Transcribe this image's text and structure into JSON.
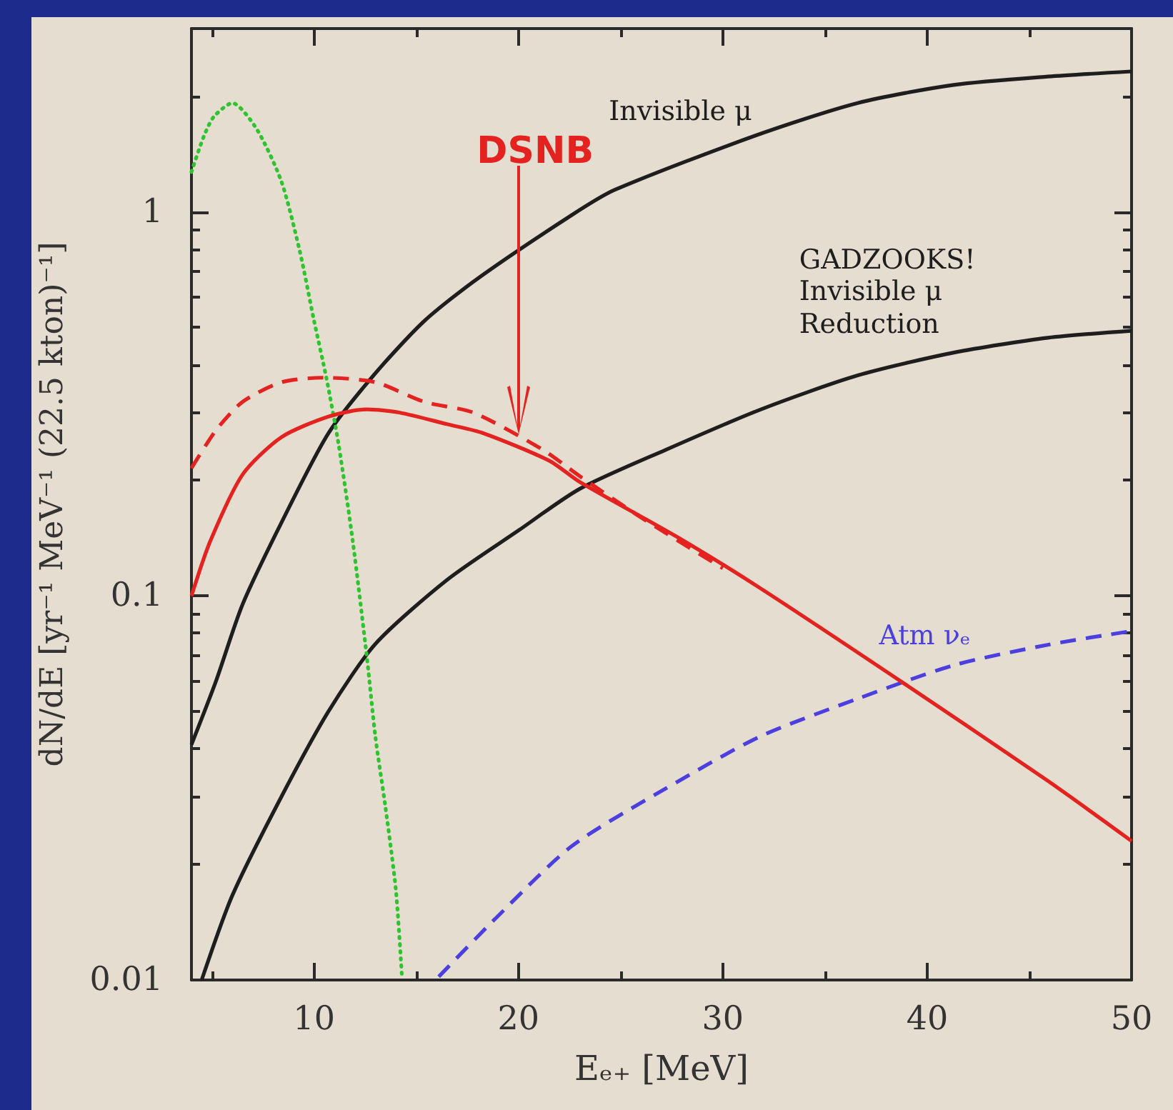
{
  "chart_data": {
    "type": "line",
    "xlabel": "Eₑ₊ [MeV]",
    "ylabel": "dN/dE [yr⁻¹ MeV⁻¹ (22.5 kton)⁻¹]",
    "log": "y",
    "grid": false,
    "marker": "none",
    "xlim": [
      4,
      50
    ],
    "ylim": [
      0.01,
      3
    ],
    "xticks": [
      {
        "value": 5,
        "label": null
      },
      10,
      {
        "value": 15,
        "label": null
      },
      20,
      {
        "value": 25,
        "label": null
      },
      30,
      {
        "value": 35,
        "label": null
      },
      40,
      {
        "value": 45,
        "label": null
      },
      50
    ],
    "yticks": [
      0.01,
      {
        "value": 0.02,
        "label": null
      },
      {
        "value": 0.03,
        "label": null
      },
      {
        "value": 0.04,
        "label": null
      },
      {
        "value": 0.05,
        "label": null
      },
      {
        "value": 0.06,
        "label": null
      },
      {
        "value": 0.07,
        "label": null
      },
      {
        "value": 0.08,
        "label": null
      },
      {
        "value": 0.09,
        "label": null
      },
      0.1,
      {
        "value": 0.2,
        "label": null
      },
      {
        "value": 0.3,
        "label": null
      },
      {
        "value": 0.4,
        "label": null
      },
      {
        "value": 0.5,
        "label": null
      },
      {
        "value": 0.6,
        "label": null
      },
      {
        "value": 0.7,
        "label": null
      },
      {
        "value": 0.8,
        "label": null
      },
      {
        "value": 0.9,
        "label": null
      },
      1,
      {
        "value": 2,
        "label": null
      }
    ],
    "annotations": [
      "DSNB"
    ],
    "series": [
      {
        "name": "Invisible μ",
        "color": "#1e1e1e",
        "line_style": "solid",
        "x": [
          4,
          5.2,
          6.5,
          8.4,
          10.7,
          13,
          15.4,
          18,
          22.6,
          24.7,
          31.6,
          36.6,
          41.3,
          45.9,
          50
        ],
        "values": [
          0.041,
          0.06,
          0.095,
          0.155,
          0.265,
          0.38,
          0.52,
          0.67,
          0.98,
          1.14,
          1.58,
          1.92,
          2.14,
          2.25,
          2.32
        ]
      },
      {
        "name": "GADZOOKS!\nInvisible μ\nReduction",
        "color": "#1e1e1e",
        "line_style": "solid",
        "x": [
          4.5,
          6,
          8.4,
          10.7,
          13,
          16.5,
          20,
          23,
          27.2,
          31.8,
          36.6,
          41.3,
          45.9,
          50
        ],
        "values": [
          0.01,
          0.0166,
          0.03,
          0.05,
          0.075,
          0.11,
          0.148,
          0.19,
          0.24,
          0.305,
          0.375,
          0.43,
          0.47,
          0.49
        ]
      },
      {
        "color": "#2fc42f",
        "line_style": "dotted",
        "x": [
          4,
          4.6,
          5.1,
          6,
          7.2,
          8.4,
          9.3,
          10,
          10.6,
          11.2,
          11.9,
          12.6,
          13,
          13.5,
          14,
          14.3
        ],
        "values": [
          1.27,
          1.57,
          1.77,
          1.92,
          1.64,
          1.2,
          0.79,
          0.52,
          0.37,
          0.248,
          0.138,
          0.068,
          0.043,
          0.028,
          0.0172,
          0.0102
        ]
      },
      {
        "name": "Atm νₑ",
        "color": "#4b3fe0",
        "line_style": "dashed",
        "x": [
          16.1,
          18.9,
          22.6,
          27.2,
          31.8,
          36.6,
          41.3,
          45.9,
          50
        ],
        "values": [
          0.0102,
          0.0145,
          0.0223,
          0.0315,
          0.043,
          0.054,
          0.066,
          0.0746,
          0.081
        ]
      },
      {
        "color": "#e42320",
        "line_style": "dashed",
        "x": [
          4,
          5.2,
          6.5,
          8.4,
          10.5,
          13,
          15.4,
          17.8,
          21.2,
          23,
          26,
          30
        ],
        "values": [
          0.215,
          0.27,
          0.32,
          0.36,
          0.37,
          0.36,
          0.32,
          0.3,
          0.24,
          0.205,
          0.16,
          0.118
        ]
      },
      {
        "color": "#e42320",
        "line_style": "solid",
        "x": [
          4,
          4.9,
          6.5,
          8.4,
          10.7,
          12.6,
          14.2,
          16.5,
          18.3,
          21.5,
          23,
          27.9,
          31.8,
          38.9,
          45.9,
          50
        ],
        "values": [
          0.1,
          0.138,
          0.207,
          0.259,
          0.293,
          0.306,
          0.3,
          0.28,
          0.265,
          0.225,
          0.198,
          0.141,
          0.105,
          0.059,
          0.033,
          0.023
        ]
      }
    ]
  }
}
